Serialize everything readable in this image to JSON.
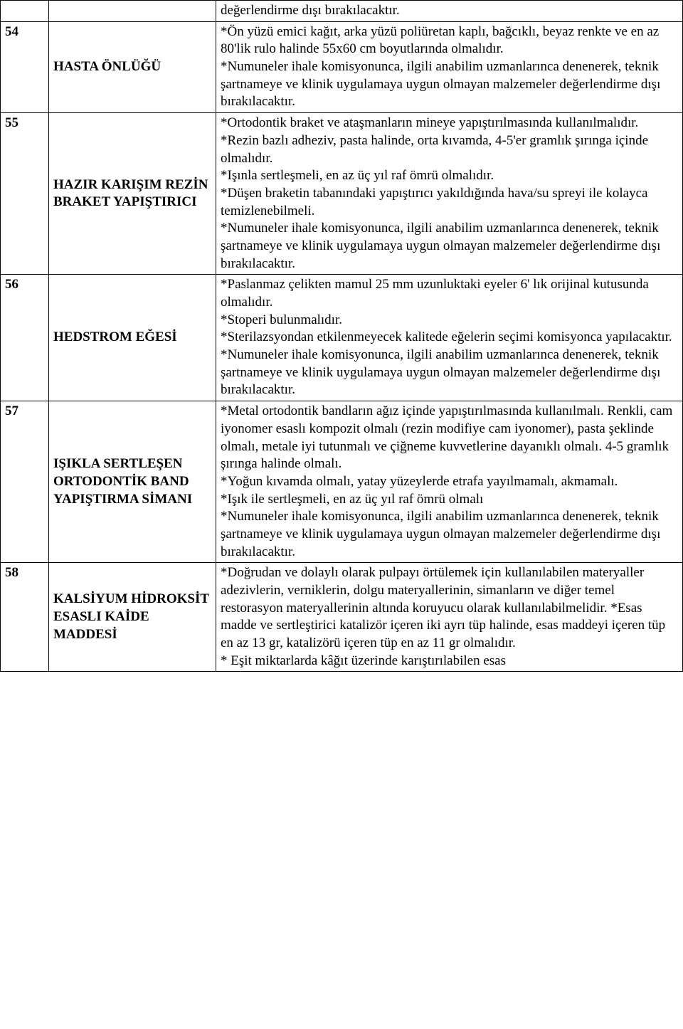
{
  "table": {
    "rows": [
      {
        "num": "",
        "name": "",
        "desc": "değerlendirme dışı bırakılacaktır."
      },
      {
        "num": "54",
        "name": "HASTA ÖNLÜĞÜ",
        "desc": "*Ön yüzü emici kağıt, arka yüzü poliüretan kaplı, bağcıklı, beyaz renkte ve en az 80'lik rulo halinde 55x60 cm boyutlarında olmalıdır.\n*Numuneler ihale komisyonunca, ilgili anabilim uzmanlarınca denenerek, teknik şartnameye ve klinik uygulamaya uygun olmayan malzemeler değerlendirme dışı bırakılacaktır."
      },
      {
        "num": "55",
        "name": "HAZIR KARIŞIM REZİN BRAKET YAPIŞTIRICI",
        "desc": "*Ortodontik braket ve ataşmanların mineye yapıştırılmasında kullanılmalıdır.\n*Rezin bazlı adheziv, pasta halinde, orta kıvamda, 4-5'er gramlık şırınga içinde olmalıdır.\n*Işınla sertleşmeli, en az üç yıl raf ömrü olmalıdır.\n*Düşen braketin tabanındaki yapıştırıcı yakıldığında hava/su spreyi ile kolayca temizlenebilmeli.\n*Numuneler ihale komisyonunca, ilgili anabilim uzmanlarınca denenerek, teknik şartnameye ve klinik uygulamaya uygun olmayan malzemeler değerlendirme dışı bırakılacaktır."
      },
      {
        "num": "56",
        "name": "HEDSTROM EĞESİ",
        "desc": "*Paslanmaz çelikten mamul 25 mm uzunluktaki eyeler 6' lık orijinal kutusunda olmalıdır.\n*Stoperi bulunmalıdır.\n*Sterilazsyondan etkilenmeyecek kalitede eğelerin seçimi komisyonca yapılacaktır.\n*Numuneler ihale komisyonunca, ilgili anabilim uzmanlarınca denenerek, teknik şartnameye ve klinik uygulamaya uygun olmayan malzemeler değerlendirme dışı bırakılacaktır."
      },
      {
        "num": "57",
        "name": "IŞIKLA SERTLEŞEN ORTODONTİK BAND YAPIŞTIRMA SİMANI",
        "desc": "*Metal ortodontik bandların ağız içinde yapıştırılmasında kullanılmalı. Renkli, cam iyonomer esaslı kompozit olmalı (rezin modifiye cam iyonomer), pasta şeklinde olmalı, metale iyi tutunmalı ve çiğneme kuvvetlerine dayanıklı olmalı. 4-5 gramlık şırınga halinde olmalı.\n*Yoğun kıvamda olmalı, yatay yüzeylerde etrafa yayılmamalı, akmamalı.\n*Işık ile sertleşmeli, en az üç yıl raf ömrü olmalı\n*Numuneler ihale komisyonunca, ilgili anabilim uzmanlarınca denenerek, teknik şartnameye ve klinik uygulamaya uygun olmayan malzemeler değerlendirme dışı bırakılacaktır."
      },
      {
        "num": "58",
        "name": "KALSİYUM HİDROKSİT ESASLI KAİDE MADDESİ",
        "desc": "*Doğrudan ve dolaylı olarak pulpayı örtülemek için kullanılabilen materyaller adezivlerin, verniklerin, dolgu materyallerinin, simanların ve diğer temel restorasyon materyallerinin altında koruyucu olarak kullanılabilmelidir. *Esas madde ve sertleştirici katalizör içeren iki ayrı tüp halinde, esas maddeyi içeren tüp en az 13 gr, katalizörü içeren tüp en az 11 gr olmalıdır.\n* Eşit miktarlarda kâğıt üzerinde karıştırılabilen esas"
      }
    ]
  }
}
